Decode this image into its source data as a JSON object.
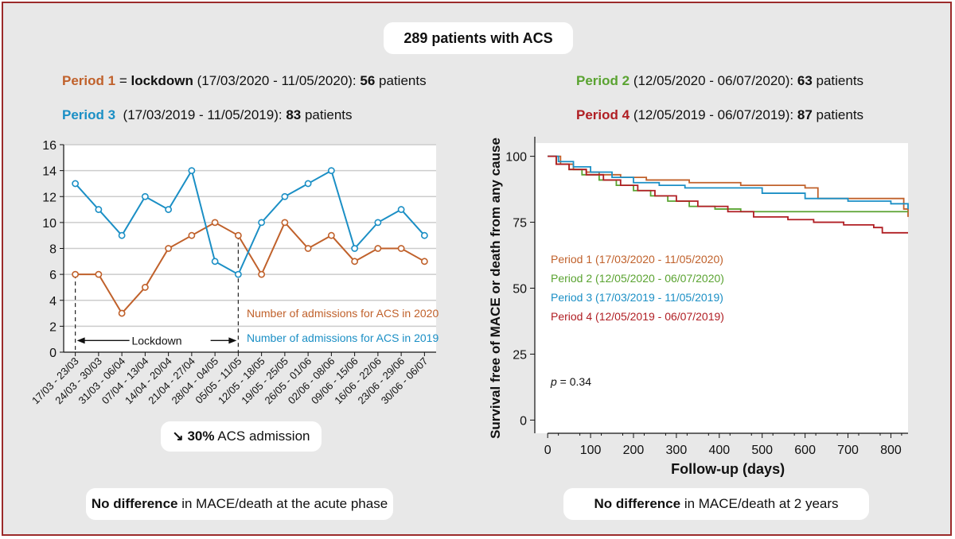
{
  "header": {
    "title": "289 patients with ACS"
  },
  "periods": {
    "p1": {
      "label": "Period 1",
      "eq": " = ",
      "bold": "lockdown",
      "dates": " (17/03/2020 - 11/05/2020): ",
      "count": "56",
      "suffix": " patients"
    },
    "p2": {
      "label": "Period 2",
      "dates": " (12/05/2020 - 06/07/2020): ",
      "count": "63",
      "suffix": " patients"
    },
    "p3": {
      "label": "Period 3",
      "dates": "  (17/03/2019 - 11/05/2019): ",
      "count": "83",
      "suffix": " patients"
    },
    "p4": {
      "label": "Period 4",
      "dates": " (12/05/2019 - 06/07/2019): ",
      "count": "87",
      "suffix": " patients"
    }
  },
  "colors": {
    "p1": "#c0612b",
    "p2": "#5aa331",
    "p3": "#1b8fc5",
    "p4": "#b01e23",
    "frame": "#9b2a2a"
  },
  "reduction": {
    "arrow": "↘",
    "value": "30%",
    "text": " ACS admission"
  },
  "bottom": {
    "left": {
      "bold": "No difference",
      "text": " in MACE/death at the acute phase"
    },
    "right": {
      "bold": "No difference",
      "text": " in MACE/death at 2 years"
    }
  },
  "chart_data": [
    {
      "type": "line",
      "title": "",
      "xlabel": "",
      "ylabel": "",
      "ylim": [
        0,
        16
      ],
      "yticks": [
        0,
        2,
        4,
        6,
        8,
        10,
        12,
        14,
        16
      ],
      "grid": true,
      "categories": [
        "17/03 - 23/03",
        "24/03 - 30/03",
        "31/03 - 06/04",
        "07/04 - 13/04",
        "14/04 - 20/04",
        "21/04 - 27/04",
        "28/04 - 04/05",
        "05/05 - 11/05",
        "12/05 - 18/05",
        "19/05 - 25/05",
        "26/05 - 01/06",
        "02/06 - 08/06",
        "09/06 - 15/06",
        "16/06 - 22/06",
        "23/06 - 29/06",
        "30/06 - 06/07"
      ],
      "series": [
        {
          "name": "Number of admissions for ACS in 2020",
          "color": "#c0612b",
          "values": [
            6,
            6,
            3,
            5,
            8,
            9,
            10,
            9,
            6,
            10,
            8,
            9,
            7,
            8,
            8,
            7
          ]
        },
        {
          "name": "Number of admissions for ACS in 2019",
          "color": "#1b8fc5",
          "values": [
            13,
            11,
            9,
            12,
            11,
            14,
            7,
            6,
            10,
            12,
            13,
            14,
            8,
            10,
            11,
            9
          ]
        }
      ],
      "annotation": {
        "label": "Lockdown",
        "from_index": 0,
        "to_index": 7
      }
    },
    {
      "type": "line",
      "title": "",
      "xlabel": "Follow-up (days)",
      "ylabel": "Survival free of MACE or death from any cause",
      "xlim": [
        -30,
        840
      ],
      "ylim": [
        -5,
        105
      ],
      "xticks": [
        0,
        100,
        200,
        300,
        400,
        500,
        600,
        700,
        800
      ],
      "yticks": [
        0,
        25,
        50,
        75,
        100
      ],
      "grid": false,
      "legend_position": "center-left",
      "annotation": {
        "p_label": "p",
        "p_value": " = 0.34"
      },
      "series": [
        {
          "name": "Period 1 (17/03/2020 - 11/05/2020)",
          "color": "#c0612b",
          "x": [
            0,
            30,
            60,
            90,
            120,
            170,
            230,
            330,
            450,
            600,
            630,
            830,
            840
          ],
          "y": [
            100,
            97,
            95,
            94,
            93,
            92,
            91,
            90,
            89,
            88,
            84,
            80,
            77
          ]
        },
        {
          "name": "Period 2 (12/05/2020 - 06/07/2020)",
          "color": "#5aa331",
          "x": [
            0,
            20,
            50,
            80,
            120,
            160,
            200,
            240,
            280,
            330,
            390,
            450,
            840
          ],
          "y": [
            100,
            97,
            95,
            93,
            91,
            89,
            87,
            85,
            83,
            81,
            80,
            79,
            79
          ]
        },
        {
          "name": "Period 3 (17/03/2019 - 11/05/2019)",
          "color": "#1b8fc5",
          "x": [
            0,
            25,
            60,
            100,
            150,
            200,
            260,
            320,
            500,
            600,
            700,
            800,
            840
          ],
          "y": [
            100,
            98,
            96,
            94,
            92,
            90,
            89,
            88,
            86,
            84,
            83,
            82,
            80
          ]
        },
        {
          "name": "Period 4 (12/05/2019 - 06/07/2019)",
          "color": "#b01e23",
          "x": [
            0,
            20,
            50,
            90,
            130,
            170,
            210,
            250,
            300,
            350,
            420,
            480,
            560,
            620,
            690,
            760,
            780,
            840
          ],
          "y": [
            100,
            97,
            95,
            93,
            91,
            89,
            87,
            85,
            83,
            81,
            79,
            77,
            76,
            75,
            74,
            73,
            71,
            71
          ]
        }
      ]
    }
  ]
}
